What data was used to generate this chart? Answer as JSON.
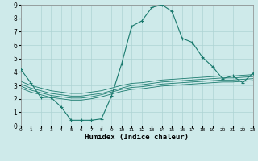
{
  "xlabel": "Humidex (Indice chaleur)",
  "xlim": [
    0,
    23
  ],
  "ylim": [
    0,
    9
  ],
  "xticks": [
    0,
    1,
    2,
    3,
    4,
    5,
    6,
    7,
    8,
    9,
    10,
    11,
    12,
    13,
    14,
    15,
    16,
    17,
    18,
    19,
    20,
    21,
    22,
    23
  ],
  "yticks": [
    0,
    1,
    2,
    3,
    4,
    5,
    6,
    7,
    8,
    9
  ],
  "bg_color": "#ceeaea",
  "grid_color": "#aed4d4",
  "line_color": "#1a7a6e",
  "line1_x": [
    0,
    1,
    2,
    3,
    4,
    5,
    6,
    7,
    8,
    9,
    10,
    11,
    12,
    13,
    14,
    15,
    16,
    17,
    18,
    19,
    20,
    21,
    22,
    23
  ],
  "line1_y": [
    4.2,
    3.2,
    2.1,
    2.1,
    1.4,
    0.4,
    0.4,
    0.4,
    0.5,
    2.2,
    4.6,
    7.4,
    7.8,
    8.8,
    9.0,
    8.5,
    6.5,
    6.2,
    5.1,
    4.4,
    3.5,
    3.7,
    3.2,
    3.9
  ],
  "line2_x": [
    0,
    1,
    2,
    3,
    4,
    5,
    6,
    7,
    8,
    9,
    10,
    11,
    12,
    13,
    14,
    15,
    16,
    17,
    18,
    19,
    20,
    21,
    22,
    23
  ],
  "line2_y": [
    3.3,
    3.0,
    2.8,
    2.6,
    2.5,
    2.4,
    2.4,
    2.5,
    2.6,
    2.8,
    3.0,
    3.15,
    3.2,
    3.3,
    3.4,
    3.45,
    3.5,
    3.55,
    3.6,
    3.65,
    3.7,
    3.7,
    3.75,
    3.8
  ],
  "line3_x": [
    0,
    1,
    2,
    3,
    4,
    5,
    6,
    7,
    8,
    9,
    10,
    11,
    12,
    13,
    14,
    15,
    16,
    17,
    18,
    19,
    20,
    21,
    22,
    23
  ],
  "line3_y": [
    3.1,
    2.8,
    2.6,
    2.4,
    2.3,
    2.2,
    2.2,
    2.3,
    2.4,
    2.6,
    2.8,
    3.0,
    3.05,
    3.15,
    3.25,
    3.3,
    3.35,
    3.4,
    3.45,
    3.5,
    3.55,
    3.55,
    3.6,
    3.65
  ],
  "line4_x": [
    0,
    1,
    2,
    3,
    4,
    5,
    6,
    7,
    8,
    9,
    10,
    11,
    12,
    13,
    14,
    15,
    16,
    17,
    18,
    19,
    20,
    21,
    22,
    23
  ],
  "line4_y": [
    2.95,
    2.65,
    2.45,
    2.25,
    2.15,
    2.05,
    2.05,
    2.15,
    2.3,
    2.5,
    2.7,
    2.85,
    2.9,
    3.0,
    3.1,
    3.15,
    3.2,
    3.25,
    3.3,
    3.35,
    3.4,
    3.4,
    3.45,
    3.5
  ],
  "line5_x": [
    0,
    1,
    2,
    3,
    4,
    5,
    6,
    7,
    8,
    9,
    10,
    11,
    12,
    13,
    14,
    15,
    16,
    17,
    18,
    19,
    20,
    21,
    22,
    23
  ],
  "line5_y": [
    2.8,
    2.5,
    2.3,
    2.1,
    2.0,
    1.9,
    1.9,
    2.0,
    2.15,
    2.35,
    2.55,
    2.7,
    2.75,
    2.85,
    2.95,
    3.0,
    3.05,
    3.1,
    3.15,
    3.2,
    3.25,
    3.25,
    3.3,
    3.35
  ]
}
